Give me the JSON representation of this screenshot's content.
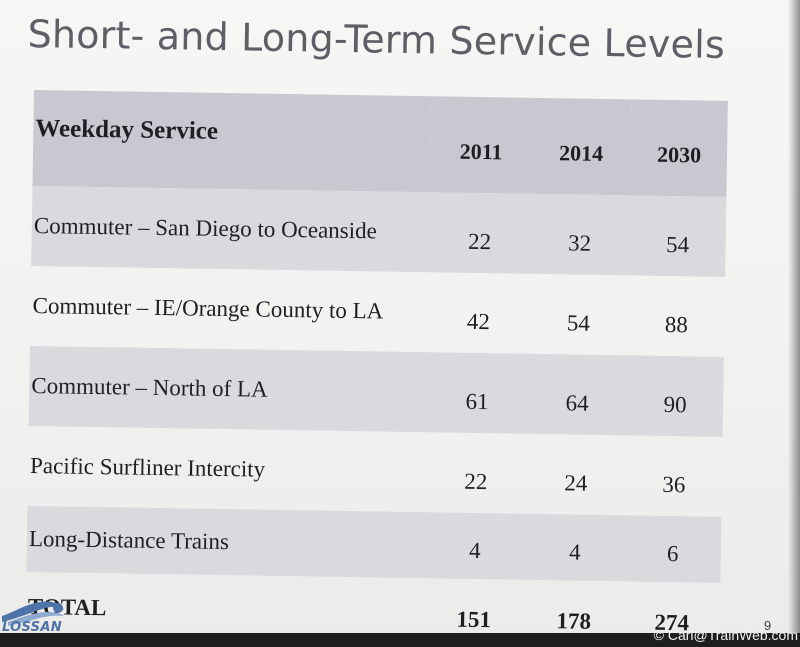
{
  "slide": {
    "title": "Short- and Long-Term Service Levels",
    "page_number": "9"
  },
  "table": {
    "header": {
      "label": "Weekday Service",
      "years": [
        "2011",
        "2014",
        "2030"
      ]
    },
    "rows": [
      {
        "label": "Commuter – San Diego to Oceanside",
        "values": [
          "22",
          "32",
          "54"
        ]
      },
      {
        "label": "Commuter – IE/Orange County to LA",
        "values": [
          "42",
          "54",
          "88"
        ]
      },
      {
        "label": "Commuter – North of LA",
        "values": [
          "61",
          "64",
          "90"
        ]
      },
      {
        "label": "Pacific Surfliner Intercity",
        "values": [
          "22",
          "24",
          "36"
        ]
      },
      {
        "label": "Long-Distance Trains",
        "values": [
          "4",
          "4",
          "6"
        ]
      }
    ],
    "total": {
      "label": "TOTAL",
      "values": [
        "151",
        "178",
        "274"
      ]
    }
  },
  "logo": {
    "text": "LOSSAN",
    "icon": "lossan-swoosh-logo",
    "color": "#4d73a8"
  },
  "credit": "© Carl@TrainWeb.com",
  "colors": {
    "header_band": "#c9c7cf",
    "shaded_row": "#dad9dd",
    "title": "#5f5d66"
  }
}
